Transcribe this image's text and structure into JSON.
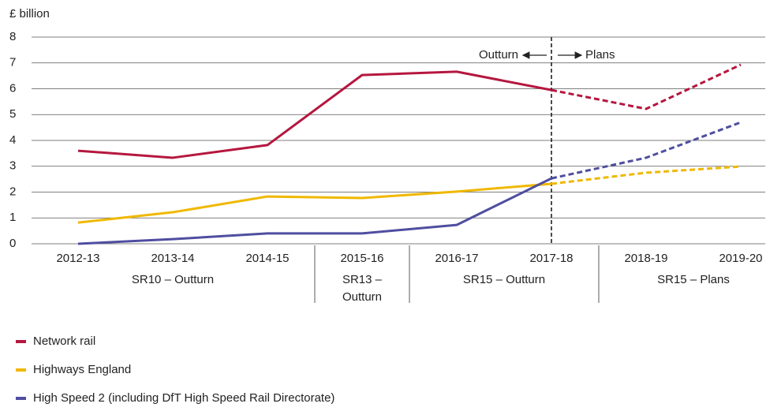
{
  "chart_data": {
    "type": "line",
    "y_axis_label": "£ billion",
    "categories": [
      "2012-13",
      "2013-14",
      "2014-15",
      "2015-16",
      "2016-17",
      "2017-18",
      "2018-19",
      "2019-20"
    ],
    "groups": [
      {
        "lines": [
          "SR10 – Outturn"
        ],
        "span": 3
      },
      {
        "lines": [
          "SR13 –",
          "Outturn"
        ],
        "span": 1
      },
      {
        "lines": [
          "SR15 – Outturn"
        ],
        "span": 2
      },
      {
        "lines": [
          "SR15 – Plans"
        ],
        "span": 2
      }
    ],
    "series": [
      {
        "name": "Network rail",
        "color": "#b5173f",
        "values": [
          3.6,
          3.33,
          3.82,
          6.53,
          6.66,
          5.95,
          5.22,
          6.93
        ]
      },
      {
        "name": "Highways England",
        "color": "#f0b800",
        "values": [
          0.82,
          1.22,
          1.83,
          1.77,
          2.02,
          2.32,
          2.75,
          2.99
        ]
      },
      {
        "name": "High Speed 2 (including DfT High Speed Rail Directorate)",
        "color": "#4f4ea0",
        "values": [
          0,
          0.18,
          0.4,
          0.4,
          0.73,
          2.53,
          3.33,
          4.7
        ]
      }
    ],
    "forecast_from_index": 5,
    "annotations": {
      "left": "Outturn",
      "right": "Plans"
    },
    "ylim": [
      0,
      8
    ],
    "yticks": [
      0,
      1,
      2,
      3,
      4,
      5,
      6,
      7,
      8
    ],
    "grid": true
  }
}
